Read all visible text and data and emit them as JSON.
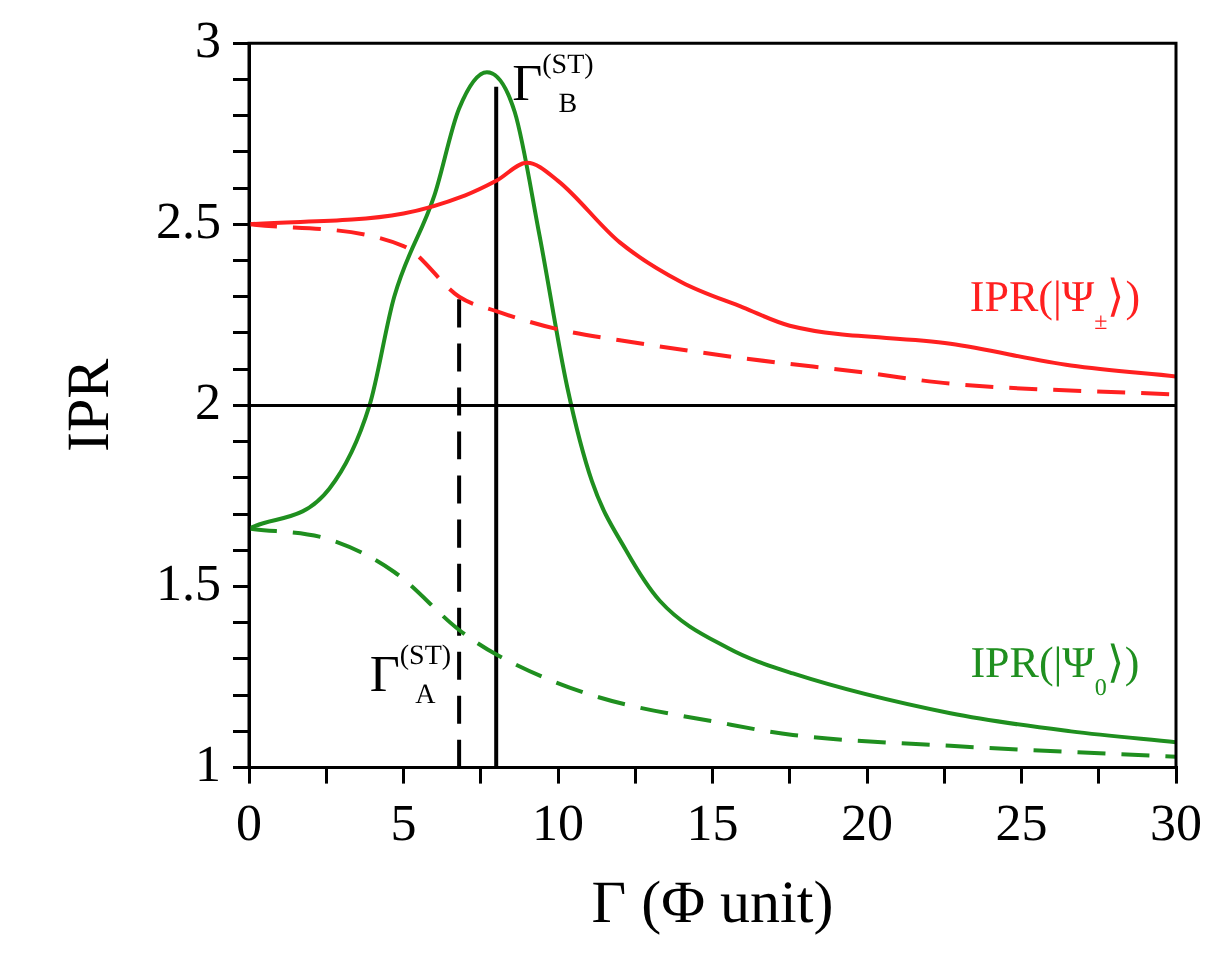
{
  "chart_data": {
    "type": "line",
    "xlabel": "Γ (Φ unit)",
    "ylabel": "IPR",
    "xlim": [
      0,
      30
    ],
    "xticks": [
      0,
      {
        "value": 2.5,
        "label": null
      },
      5,
      {
        "value": 7.5,
        "label": null
      },
      10,
      {
        "value": 12.5,
        "label": null
      },
      15,
      {
        "value": 17.5,
        "label": null
      },
      20,
      {
        "value": 22.5,
        "label": null
      },
      25,
      {
        "value": 27.5,
        "label": null
      },
      30
    ],
    "ylim": [
      1,
      3
    ],
    "yticks": [
      1,
      {
        "value": 1.1,
        "label": null
      },
      {
        "value": 1.2,
        "label": null
      },
      {
        "value": 1.3,
        "label": null
      },
      {
        "value": 1.4,
        "label": null
      },
      1.5,
      {
        "value": 1.6,
        "label": null
      },
      {
        "value": 1.7,
        "label": null
      },
      {
        "value": 1.8,
        "label": null
      },
      {
        "value": 1.9,
        "label": null
      },
      2,
      {
        "value": 2.1,
        "label": null
      },
      {
        "value": 2.2,
        "label": null
      },
      {
        "value": 2.3,
        "label": null
      },
      {
        "value": 2.4,
        "label": null
      },
      2.5,
      {
        "value": 2.6,
        "label": null
      },
      {
        "value": 2.7,
        "label": null
      },
      {
        "value": 2.8,
        "label": null
      },
      {
        "value": 2.9,
        "label": null
      },
      3
    ],
    "grid": false,
    "legend": false,
    "marker": "none",
    "ref_lines": [
      {
        "axis": "y",
        "value": 2,
        "color": "#000000"
      }
    ],
    "annotations": [
      {
        "text": "Γ$^{(ST)}$$_{B}$",
        "x": 8,
        "y": 2.88
      },
      {
        "text": "Γ$^{(ST)}$$_{A}$",
        "x": 6.8,
        "y": 1.25
      }
    ],
    "series": [
      {
        "name": "IPR(|Ψ$_{±}$⟩)",
        "color": "#ff2020",
        "line_style": "solid",
        "x": [
          0,
          5,
          7,
          8,
          9,
          10,
          12,
          14,
          16,
          17.5,
          22.7,
          26.6,
          30
        ],
        "values": [
          2.5,
          2.53,
          2.58,
          2.62,
          2.67,
          2.62,
          2.45,
          2.34,
          2.27,
          2.22,
          2.17,
          2.11,
          2.08
        ]
      },
      {
        "color": "#ff2020",
        "line_style": "dashed",
        "x": [
          0,
          5,
          6.8,
          8,
          10,
          12,
          16,
          20,
          22.7,
          30
        ],
        "values": [
          2.5,
          2.44,
          2.3,
          2.26,
          2.21,
          2.18,
          2.13,
          2.09,
          2.06,
          2.03
        ]
      },
      {
        "name": "IPR(|Ψ$_{0}$⟩)",
        "color": "#1f8f1f",
        "line_style": "solid",
        "x": [
          0,
          2.6,
          3.9,
          4.7,
          6,
          6.8,
          7.7,
          8.6,
          9.4,
          10.3,
          11.1,
          12.2,
          13.3,
          15.5,
          17.6,
          22.7,
          26.6,
          30
        ],
        "values": [
          1.66,
          1.77,
          2.0,
          2.3,
          2.58,
          2.82,
          2.92,
          2.81,
          2.47,
          2.05,
          1.79,
          1.6,
          1.46,
          1.33,
          1.26,
          1.15,
          1.1,
          1.07
        ]
      },
      {
        "color": "#1f8f1f",
        "line_style": "dashed",
        "x": [
          0,
          2.6,
          4.7,
          6.8,
          8.05,
          11.1,
          15.5,
          17.6,
          22.7,
          30
        ],
        "values": [
          1.66,
          1.63,
          1.54,
          1.38,
          1.31,
          1.2,
          1.12,
          1.09,
          1.06,
          1.03
        ]
      },
      {
        "color": "#000000",
        "line_style": "solid",
        "x": [
          8,
          8
        ],
        "values": [
          1,
          2.88
        ]
      },
      {
        "color": "#000000",
        "line_style": "dashed",
        "x": [
          6.8,
          6.8
        ],
        "values": [
          1,
          2.3
        ]
      }
    ]
  }
}
